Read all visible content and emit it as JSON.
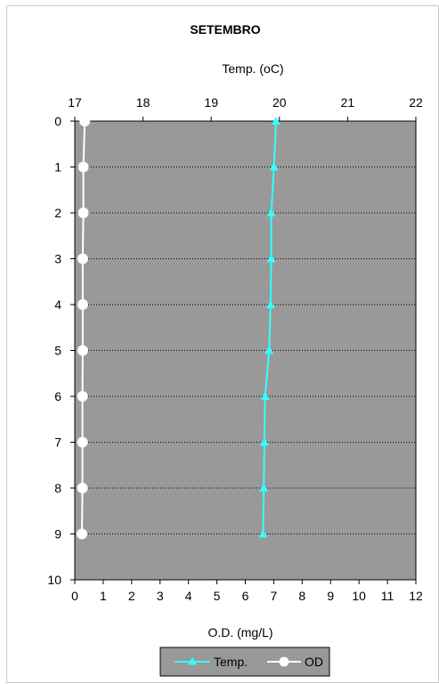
{
  "chart_data": {
    "type": "line",
    "title": "SETEMBRO",
    "orientation": "profile",
    "y_axis": {
      "label": "",
      "range": [
        0,
        10
      ],
      "reversed": true,
      "ticks": [
        0,
        1,
        2,
        3,
        4,
        5,
        6,
        7,
        8,
        9,
        10
      ]
    },
    "x_axis_top": {
      "label": "Temp. (oC)",
      "range": [
        17,
        22
      ],
      "ticks": [
        17,
        18,
        19,
        20,
        21,
        22
      ]
    },
    "x_axis_bottom": {
      "label": "O.D. (mg/L)",
      "range": [
        0,
        12
      ],
      "ticks": [
        0,
        1,
        2,
        3,
        4,
        5,
        6,
        7,
        8,
        9,
        10,
        11,
        12
      ]
    },
    "depths": [
      0,
      1,
      2,
      3,
      4,
      5,
      6,
      7,
      8,
      9
    ],
    "series": [
      {
        "name": "Temp.",
        "axis": "top",
        "color": "#33ffff",
        "marker": "triangle",
        "values": [
          19.95,
          19.92,
          19.88,
          19.88,
          19.87,
          19.85,
          19.79,
          19.78,
          19.77,
          19.76
        ]
      },
      {
        "name": "OD",
        "axis": "bottom",
        "color": "#ffffff",
        "marker": "circle",
        "values": [
          0.35,
          0.3,
          0.3,
          0.28,
          0.28,
          0.28,
          0.27,
          0.27,
          0.27,
          0.25
        ]
      }
    ],
    "grid": true,
    "plot_background": "#999999",
    "legend": {
      "position": "bottom-center",
      "background": "#999999"
    }
  }
}
